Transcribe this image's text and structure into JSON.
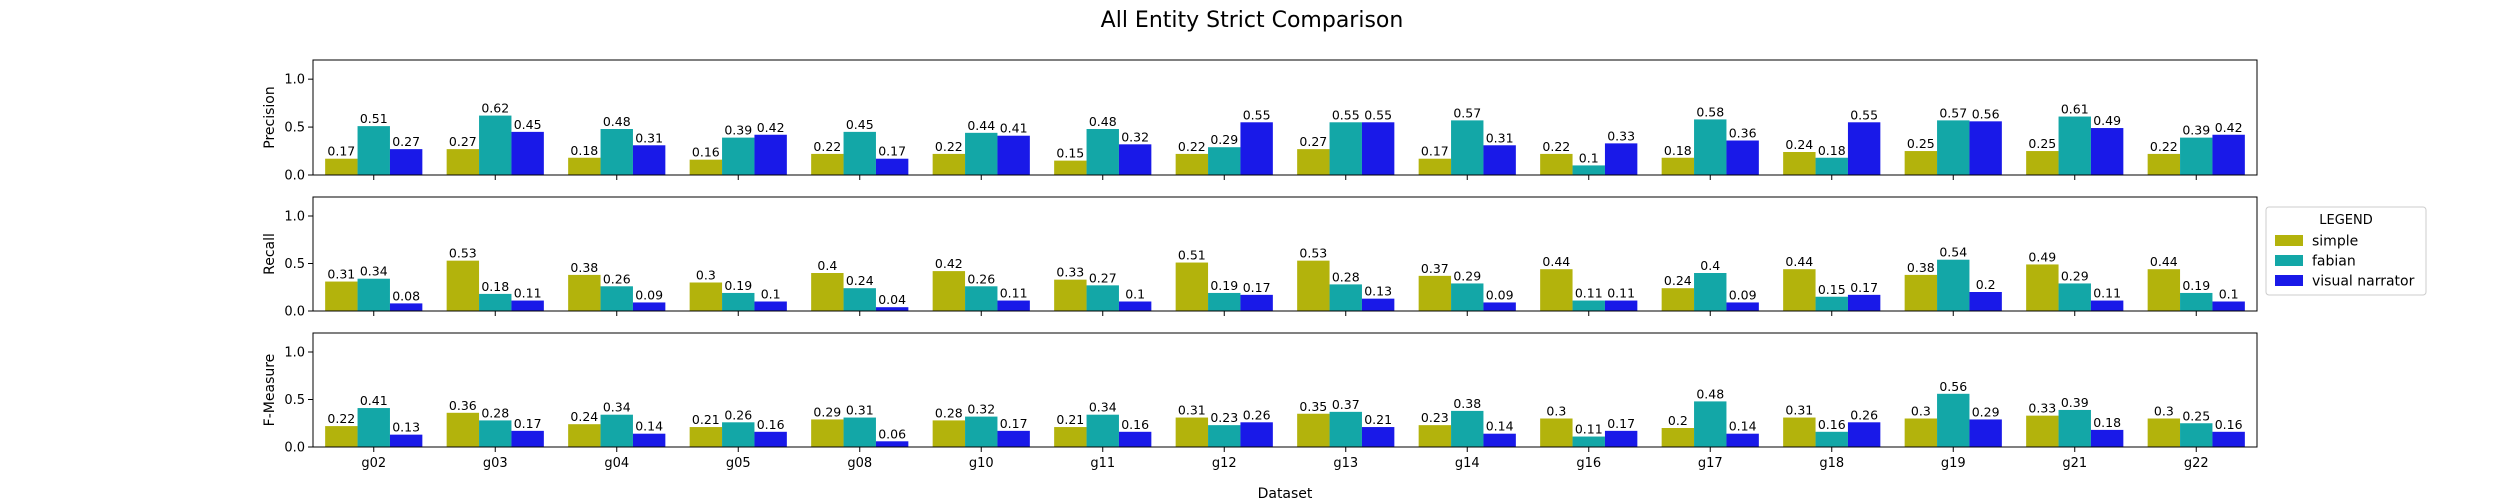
{
  "chart_data": {
    "type": "bar",
    "title": "All Entity Strict Comparison",
    "xlabel": "Dataset",
    "categories": [
      "g02",
      "g03",
      "g04",
      "g05",
      "g08",
      "g10",
      "g11",
      "g12",
      "g13",
      "g14",
      "g16",
      "g17",
      "g18",
      "g19",
      "g21",
      "g22"
    ],
    "ylim": [
      0,
      1.2
    ],
    "yticks": [
      "0.0",
      "0.5",
      "1.0"
    ],
    "grid": false,
    "legend": {
      "title": "LEGEND",
      "placement": "right",
      "entries": [
        "simple",
        "fabian",
        "visual narrator"
      ]
    },
    "colors": {
      "simple": "#b3b30c",
      "fabian": "#13a7a7",
      "visual narrator": "#1919e8"
    },
    "panels": [
      {
        "ylabel": "Precision",
        "series": [
          {
            "name": "simple",
            "values": [
              0.17,
              0.27,
              0.18,
              0.16,
              0.22,
              0.22,
              0.15,
              0.22,
              0.27,
              0.17,
              0.22,
              0.18,
              0.24,
              0.25,
              0.25,
              0.22
            ]
          },
          {
            "name": "fabian",
            "values": [
              0.51,
              0.62,
              0.48,
              0.39,
              0.45,
              0.44,
              0.48,
              0.29,
              0.55,
              0.57,
              0.1,
              0.58,
              0.18,
              0.57,
              0.61,
              0.39
            ]
          },
          {
            "name": "visual narrator",
            "values": [
              0.27,
              0.45,
              0.31,
              0.42,
              0.17,
              0.41,
              0.32,
              0.55,
              0.55,
              0.31,
              0.33,
              0.36,
              0.55,
              0.56,
              0.49,
              0.42
            ]
          }
        ]
      },
      {
        "ylabel": "Recall",
        "series": [
          {
            "name": "simple",
            "values": [
              0.31,
              0.53,
              0.38,
              0.3,
              0.4,
              0.42,
              0.33,
              0.51,
              0.53,
              0.37,
              0.44,
              0.24,
              0.44,
              0.38,
              0.49,
              0.44
            ]
          },
          {
            "name": "fabian",
            "values": [
              0.34,
              0.18,
              0.26,
              0.19,
              0.24,
              0.26,
              0.27,
              0.19,
              0.28,
              0.29,
              0.11,
              0.4,
              0.15,
              0.54,
              0.29,
              0.19
            ]
          },
          {
            "name": "visual narrator",
            "values": [
              0.08,
              0.11,
              0.09,
              0.1,
              0.04,
              0.11,
              0.1,
              0.17,
              0.13,
              0.09,
              0.11,
              0.09,
              0.17,
              0.2,
              0.11,
              0.1
            ]
          }
        ]
      },
      {
        "ylabel": "F-Measure",
        "series": [
          {
            "name": "simple",
            "values": [
              0.22,
              0.36,
              0.24,
              0.21,
              0.29,
              0.28,
              0.21,
              0.31,
              0.35,
              0.23,
              0.3,
              0.2,
              0.31,
              0.3,
              0.33,
              0.3
            ]
          },
          {
            "name": "fabian",
            "values": [
              0.41,
              0.28,
              0.34,
              0.26,
              0.31,
              0.32,
              0.34,
              0.23,
              0.37,
              0.38,
              0.11,
              0.48,
              0.16,
              0.56,
              0.39,
              0.25
            ]
          },
          {
            "name": "visual narrator",
            "values": [
              0.13,
              0.17,
              0.14,
              0.16,
              0.06,
              0.17,
              0.16,
              0.26,
              0.21,
              0.14,
              0.17,
              0.14,
              0.26,
              0.29,
              0.18,
              0.16
            ]
          }
        ]
      }
    ]
  }
}
